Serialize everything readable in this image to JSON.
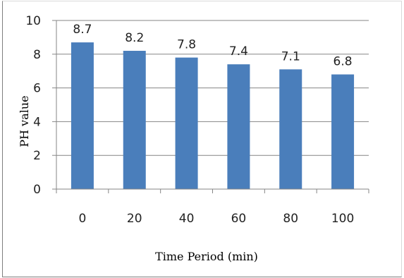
{
  "chart_data": {
    "type": "bar",
    "categories": [
      "0",
      "20",
      "40",
      "60",
      "80",
      "100"
    ],
    "values": [
      8.7,
      8.2,
      7.8,
      7.4,
      7.1,
      6.8
    ],
    "data_labels": [
      "8.7",
      "8.2",
      "7.8",
      "7.4",
      "7.1",
      "6.8"
    ],
    "title": "",
    "xlabel": "Time Period (min)",
    "ylabel": "PH value",
    "ylim": [
      0,
      10
    ],
    "yticks": [
      0,
      2,
      4,
      6,
      8,
      10
    ],
    "ytick_labels": [
      "0",
      "2",
      "4",
      "6",
      "8",
      "10"
    ],
    "grid": true,
    "legend": "none",
    "bar_color": "#4a7ebb",
    "gridline_color": "#868686"
  }
}
